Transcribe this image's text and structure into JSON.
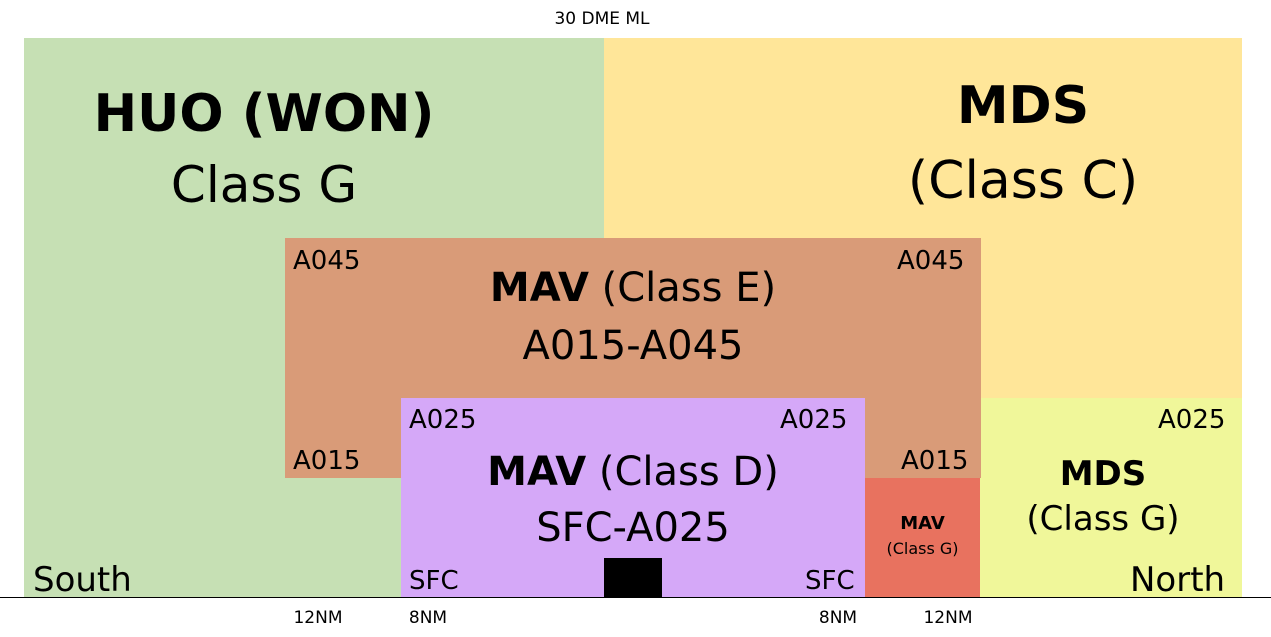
{
  "top_label": "30 DME ML",
  "colors": {
    "huo": "#c6e0b4",
    "mds_c": "#ffe699",
    "mav_e": "#d99b78",
    "mav_d": "#d5a8f8",
    "mav_g": "#e8725f",
    "mds_g": "#f0f79a",
    "black": "#000000"
  },
  "huo": {
    "name": "HUO",
    "alt": "(WON)",
    "class_label": "Class G"
  },
  "mds_c": {
    "name": "MDS",
    "class_label": "(Class C)"
  },
  "mav_e": {
    "name": "MAV",
    "class_label": "(Class E)",
    "range": "A015-A045",
    "top_left": "A045",
    "top_right": "A045",
    "bottom_left": "A015",
    "bottom_right": "A015"
  },
  "mav_d": {
    "name": "MAV",
    "class_label": "(Class D)",
    "range": "SFC-A025",
    "top_left": "A025",
    "top_right": "A025",
    "bottom_left": "SFC",
    "bottom_right": "SFC"
  },
  "mav_g": {
    "name": "MAV",
    "class_label": "(Class G)"
  },
  "mds_g": {
    "name": "MDS",
    "class_label": "(Class G)",
    "top_right": "A025"
  },
  "south": "South",
  "north": "North",
  "axis": [
    "12NM",
    "8NM",
    "8NM",
    "12NM"
  ]
}
